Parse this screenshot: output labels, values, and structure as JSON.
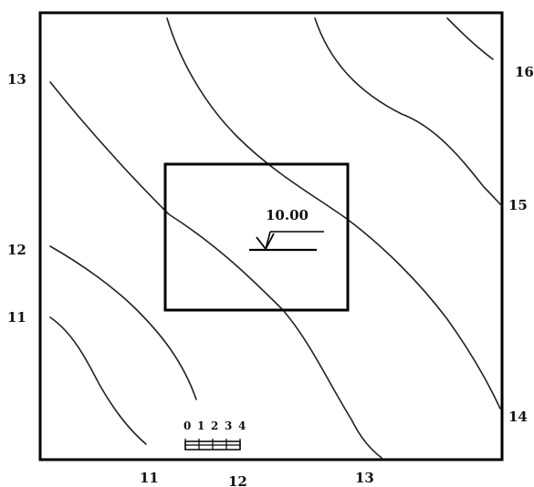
{
  "left_labels": [
    "13",
    "12",
    "11"
  ],
  "right_labels": [
    "16",
    "15",
    "14"
  ],
  "bottom_labels": [
    "11",
    "12",
    "13"
  ],
  "building": {
    "elevation": "10.00"
  },
  "scale_bar": {
    "ticks": [
      "0",
      "1",
      "2",
      "3",
      "4"
    ]
  }
}
